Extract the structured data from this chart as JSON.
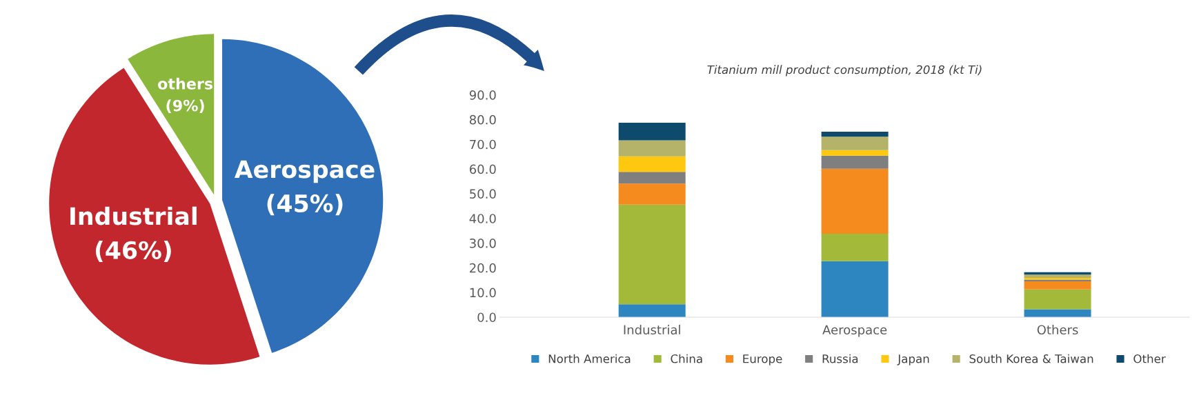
{
  "chart_data": [
    {
      "type": "pie",
      "categories": [
        "Aerospace",
        "Industrial",
        "others"
      ],
      "values": [
        45,
        46,
        9
      ],
      "value_labels": [
        "(45%)",
        "(46%)",
        "(9%)"
      ],
      "colors": [
        "#2e6fb7",
        "#c1272d",
        "#8cb73d"
      ]
    },
    {
      "type": "bar",
      "title": "Titanium mill product consumption, 2018 (kt Ti)",
      "categories": [
        "Industrial",
        "Aerospace",
        "Others"
      ],
      "stacked": true,
      "ylim": [
        0,
        90
      ],
      "yticks": [
        {
          "value": 0,
          "label": "0.0"
        },
        {
          "value": 10,
          "label": "10.0"
        },
        {
          "value": 20,
          "label": "20.0"
        },
        {
          "value": 30,
          "label": "30.0"
        },
        {
          "value": 40,
          "label": "40.0"
        },
        {
          "value": 50,
          "label": "50.0"
        },
        {
          "value": 60,
          "label": "60.0"
        },
        {
          "value": 70,
          "label": "70.0"
        },
        {
          "value": 80,
          "label": "80.0"
        },
        {
          "value": 90,
          "label": "90.0"
        }
      ],
      "grid": false,
      "legend": "bottom",
      "series": [
        {
          "name": "North America",
          "color": "#2e86c1",
          "values": [
            5.2,
            22.7,
            3.2
          ]
        },
        {
          "name": "China",
          "color": "#a3b93a",
          "values": [
            40.4,
            11.1,
            8.0
          ]
        },
        {
          "name": "Europe",
          "color": "#f58a1f",
          "values": [
            8.5,
            26.3,
            3.3
          ]
        },
        {
          "name": "Russia",
          "color": "#7f7f7f",
          "values": [
            4.7,
            5.3,
            0.7
          ]
        },
        {
          "name": "Japan",
          "color": "#fec80f",
          "values": [
            6.3,
            2.2,
            0.7
          ]
        },
        {
          "name": "South Korea & Taiwan",
          "color": "#b5b36a",
          "values": [
            6.5,
            5.5,
            1.3
          ]
        },
        {
          "name": "Other",
          "color": "#0d4a6b",
          "values": [
            7.1,
            2.0,
            1.0
          ]
        }
      ]
    }
  ]
}
